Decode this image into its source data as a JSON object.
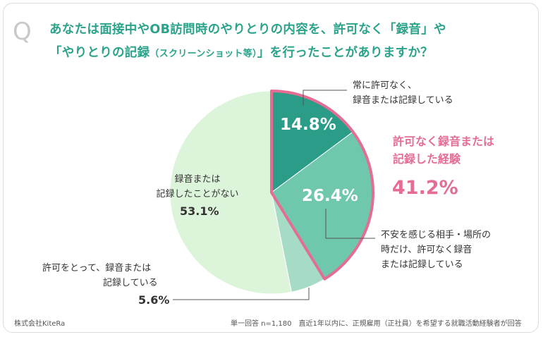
{
  "question": {
    "mark": "Q",
    "line1": "あなたは面接中やOB訪問時のやりとりの内容を、許可なく「録音」や",
    "line2_main": "「やりとりの記録",
    "line2_small": "（スクリーンショット等）",
    "line2_end": "」を行ったことがありますか？"
  },
  "chart_data": {
    "type": "pie",
    "title": "あなたは面接中やOB訪問時のやりとりの内容を、許可なく「録音」や「やりとりの記録（スクリーンショット等）」を行ったことがありますか？",
    "unit": "%",
    "slices": [
      {
        "label": "常に許可なく、録音または記録している",
        "value": 14.8,
        "color": "#2a9c87"
      },
      {
        "label": "不安を感じる相手・場所の時だけ、許可なく録音または記録している",
        "value": 26.4,
        "color": "#6fc7ad"
      },
      {
        "label": "許可をとって、録音または記録している",
        "value": 5.6,
        "color": "#a6dcc5"
      },
      {
        "label": "録音または記録したことがない",
        "value": 53.1,
        "color": "#dcf5da"
      }
    ],
    "highlight": {
      "label": "許可なく録音または記録した経験",
      "value": 41.2,
      "color": "#e46d93"
    }
  },
  "labels": {
    "always_line1": "常に許可なく、",
    "always_line2": "録音または記録している",
    "always_pct": "14.8%",
    "anxious_line1": "不安を感じる相手・場所の",
    "anxious_line2": "時だけ、許可なく録音",
    "anxious_line3": "または記録している",
    "anxious_pct": "26.4%",
    "permission_line1": "許可をとって、録音または",
    "permission_line2": "記録している",
    "permission_pct": "5.6%",
    "never_line1": "録音または",
    "never_line2": "記録したことがない",
    "never_pct": "53.1%",
    "highlight_line1": "許可なく録音または",
    "highlight_line2": "記録した経験",
    "highlight_pct": "41.2%"
  },
  "footer": {
    "company": "株式会社KiteRa",
    "note": "単一回答 n=1,180　直近1年以内に、正規雇用（正社員）を希望する就職活動経験者が回答"
  }
}
